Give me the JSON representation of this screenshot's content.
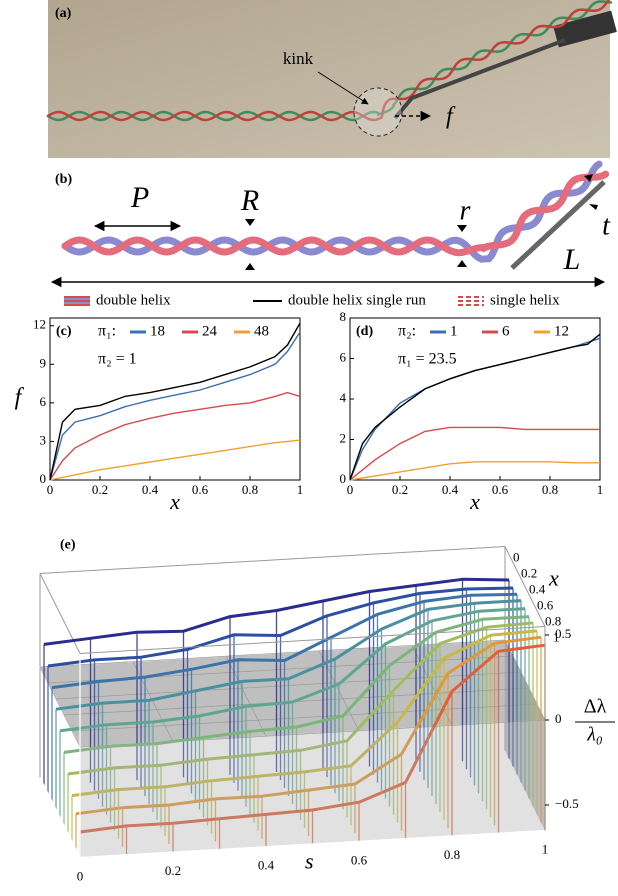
{
  "panel_a": {
    "label": "(a)",
    "kink": "kink",
    "force": "f"
  },
  "panel_b": {
    "label": "(b)",
    "pitch": "P",
    "radius": "R",
    "strand_radius": "r",
    "length": "L",
    "thickness": "t"
  },
  "legend": [
    "double helix",
    "double helix single run",
    "single helix"
  ],
  "chart_data": [
    {
      "type": "line",
      "label": "(c)",
      "xlabel": "x",
      "ylabel": "f",
      "legend_title": "π₁:",
      "annotation": "π₂ = 1",
      "x": [
        0,
        0.05,
        0.1,
        0.2,
        0.3,
        0.4,
        0.5,
        0.6,
        0.7,
        0.8,
        0.9,
        0.95,
        1
      ],
      "xlim": [
        0,
        1
      ],
      "ylim": [
        0,
        12.6
      ],
      "xticks": [
        0,
        0.2,
        0.4,
        0.6,
        0.8,
        1
      ],
      "yticks": [
        0,
        3,
        6,
        9,
        12
      ],
      "series": [
        {
          "name": "18",
          "color": "#3a6fb0",
          "values": [
            0,
            3.5,
            4.5,
            5,
            5.7,
            6.2,
            6.6,
            7,
            7.6,
            8.2,
            9,
            10,
            11.5
          ]
        },
        {
          "name": "24",
          "color": "#d9484f",
          "values": [
            0,
            1.5,
            2.5,
            3.5,
            4.3,
            4.8,
            5.2,
            5.5,
            5.8,
            6,
            6.5,
            6.8,
            6.5
          ]
        },
        {
          "name": "48",
          "color": "#f0a030",
          "values": [
            0,
            0.2,
            0.4,
            0.8,
            1.1,
            1.4,
            1.7,
            2,
            2.3,
            2.6,
            2.9,
            3,
            3.1
          ]
        },
        {
          "color": "#000000",
          "values": [
            0,
            4.5,
            5.5,
            5.8,
            6.5,
            6.8,
            7.2,
            7.6,
            8.2,
            8.8,
            9.6,
            10.5,
            12.2
          ]
        }
      ]
    },
    {
      "type": "line",
      "label": "(d)",
      "xlabel": "x",
      "legend_title": "π₂:",
      "annotation": "π₁ = 23.5",
      "x": [
        0,
        0.05,
        0.1,
        0.2,
        0.3,
        0.4,
        0.5,
        0.6,
        0.7,
        0.8,
        0.9,
        0.95,
        1
      ],
      "xlim": [
        0,
        1
      ],
      "ylim": [
        0,
        8
      ],
      "xticks": [
        0,
        0.2,
        0.4,
        0.6,
        0.8,
        1
      ],
      "yticks": [
        0,
        2,
        4,
        6,
        8
      ],
      "series": [
        {
          "name": "1",
          "color": "#3a6fb0",
          "values": [
            0,
            1.5,
            2.5,
            3.8,
            4.5,
            5,
            5.4,
            5.7,
            6,
            6.3,
            6.6,
            6.8,
            7
          ]
        },
        {
          "name": "6",
          "color": "#d9484f",
          "values": [
            0,
            0.5,
            1,
            1.8,
            2.4,
            2.6,
            2.6,
            2.6,
            2.5,
            2.5,
            2.5,
            2.5,
            2.5
          ]
        },
        {
          "name": "12",
          "color": "#f0a030",
          "values": [
            0,
            0.1,
            0.2,
            0.4,
            0.6,
            0.8,
            0.9,
            0.9,
            0.9,
            0.9,
            0.85,
            0.85,
            0.85
          ]
        },
        {
          "color": "#000000",
          "values": [
            0,
            1.8,
            2.6,
            3.6,
            4.5,
            5,
            5.4,
            5.7,
            6,
            6.3,
            6.6,
            6.7,
            7.2
          ]
        }
      ]
    },
    {
      "type": "line3d",
      "label": "(e)",
      "xlabel": "x",
      "slabel": "s",
      "zlabel": "Δλ",
      "zlabel_denominator": "λ₀",
      "s": [
        0,
        0.1,
        0.2,
        0.3,
        0.4,
        0.5,
        0.6,
        0.7,
        0.8,
        0.9,
        1
      ],
      "slim": [
        0,
        1
      ],
      "sticks": [
        0,
        0.2,
        0.4,
        0.6,
        0.8,
        1
      ],
      "xlim": [
        0,
        1
      ],
      "xticks": [
        0,
        0.2,
        0.4,
        0.6,
        0.8,
        1
      ],
      "zlim": [
        -0.65,
        0.55
      ],
      "zticks": [
        {
          "value": -0.5,
          "label": "−0.5"
        },
        0,
        0.5
      ],
      "series": [
        {
          "x": 0.1,
          "color": "#2b2c8f",
          "values": [
            0.18,
            0.2,
            0.22,
            0.21,
            0.28,
            0.3,
            0.34,
            0.38,
            0.4,
            0.42,
            0.4
          ]
        },
        {
          "x": 0.2,
          "color": "#2d4fa0",
          "values": [
            0.1,
            0.12,
            0.12,
            0.15,
            0.22,
            0.2,
            0.3,
            0.36,
            0.4,
            0.41,
            0.4
          ]
        },
        {
          "x": 0.3,
          "color": "#3a74a8",
          "values": [
            0.02,
            0.04,
            0.05,
            0.08,
            0.12,
            0.1,
            0.22,
            0.34,
            0.4,
            0.42,
            0.41
          ]
        },
        {
          "x": 0.4,
          "color": "#4b90a0",
          "values": [
            -0.06,
            -0.04,
            -0.04,
            0,
            0.04,
            0.04,
            0.14,
            0.3,
            0.4,
            0.42,
            0.42
          ]
        },
        {
          "x": 0.5,
          "color": "#5fa592",
          "values": [
            -0.14,
            -0.12,
            -0.12,
            -0.1,
            -0.06,
            -0.05,
            0.04,
            0.26,
            0.38,
            0.42,
            0.42
          ]
        },
        {
          "x": 0.6,
          "color": "#7ab57a",
          "values": [
            -0.22,
            -0.2,
            -0.2,
            -0.18,
            -0.16,
            -0.15,
            -0.1,
            0.18,
            0.36,
            0.42,
            0.42
          ]
        },
        {
          "x": 0.7,
          "color": "#a0bd5e",
          "values": [
            -0.3,
            -0.28,
            -0.28,
            -0.26,
            -0.25,
            -0.24,
            -0.2,
            0.08,
            0.34,
            0.42,
            0.43
          ]
        },
        {
          "x": 0.8,
          "color": "#c8b848",
          "values": [
            -0.38,
            -0.36,
            -0.36,
            -0.34,
            -0.33,
            -0.32,
            -0.3,
            -0.06,
            0.3,
            0.42,
            0.43
          ]
        },
        {
          "x": 0.9,
          "color": "#e09838",
          "values": [
            -0.44,
            -0.42,
            -0.42,
            -0.4,
            -0.4,
            -0.38,
            -0.36,
            -0.2,
            0.26,
            0.42,
            0.44
          ]
        },
        {
          "x": 1,
          "color": "#e0603a",
          "values": [
            -0.5,
            -0.48,
            -0.48,
            -0.47,
            -0.46,
            -0.45,
            -0.42,
            -0.32,
            0.2,
            0.42,
            0.44
          ]
        }
      ]
    }
  ]
}
